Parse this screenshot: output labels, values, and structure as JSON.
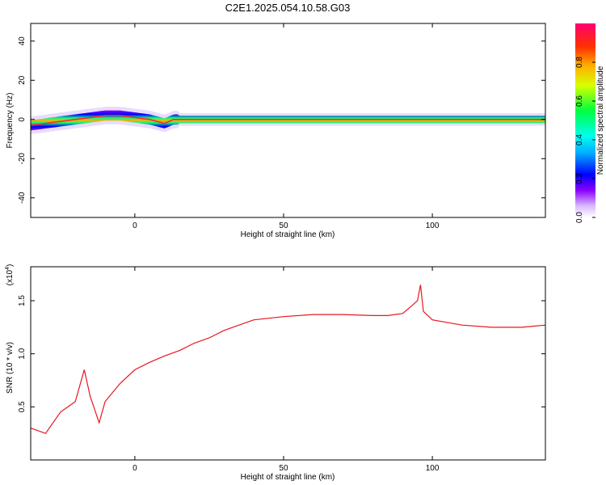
{
  "title": "C2E1.2025.054.10.58.G03",
  "chart_data": [
    {
      "type": "heatmap",
      "title": "C2E1.2025.054.10.58.G03",
      "xlabel": "Height of straight line (km)",
      "ylabel": "Frequency (Hz)",
      "xlim": [
        -35,
        138
      ],
      "ylim": [
        -50,
        49
      ],
      "xticks": [
        0,
        50,
        100
      ],
      "yticks": [
        -40,
        -20,
        0,
        20,
        40
      ],
      "ridge": {
        "x": [
          -35,
          -30,
          -25,
          -20,
          -15,
          -10,
          -5,
          0,
          5,
          10,
          13,
          20,
          40,
          60,
          80,
          88,
          92,
          95,
          100,
          120,
          138
        ],
        "freq": [
          -3,
          -2,
          -1,
          0,
          1,
          2,
          2,
          1,
          0,
          -2,
          0,
          0,
          0,
          0,
          0,
          0,
          0,
          0,
          0,
          0,
          0
        ]
      },
      "colorbar": {
        "label": "Normalized spectral amplitude",
        "ticks": [
          0.0,
          0.2,
          0.4,
          0.6,
          0.8
        ],
        "range": [
          0,
          1
        ]
      }
    },
    {
      "type": "line",
      "xlabel": "Height of straight line (km)",
      "ylabel": "SNR (10 * v/v)",
      "scale_label": "(x10",
      "scale_exp": "4",
      "xlim": [
        -35,
        138
      ],
      "ylim": [
        0,
        1.82
      ],
      "xticks": [
        0,
        50,
        100
      ],
      "yticks": [
        0.5,
        1.0,
        1.5
      ],
      "ytick_labels": [
        "0.5",
        "1.0",
        "1.5"
      ],
      "series": [
        {
          "color": "#e8161e",
          "x": [
            -35,
            -30,
            -25,
            -20,
            -17,
            -15,
            -12,
            -10,
            -5,
            0,
            5,
            10,
            15,
            20,
            25,
            30,
            35,
            40,
            50,
            60,
            70,
            80,
            85,
            90,
            93,
            95,
            96,
            97,
            100,
            110,
            120,
            130,
            138
          ],
          "values": [
            0.3,
            0.25,
            0.45,
            0.55,
            0.85,
            0.6,
            0.35,
            0.55,
            0.72,
            0.85,
            0.92,
            0.98,
            1.03,
            1.1,
            1.15,
            1.22,
            1.27,
            1.32,
            1.35,
            1.37,
            1.37,
            1.36,
            1.36,
            1.38,
            1.45,
            1.5,
            1.65,
            1.4,
            1.32,
            1.27,
            1.25,
            1.25,
            1.27
          ]
        }
      ]
    }
  ]
}
